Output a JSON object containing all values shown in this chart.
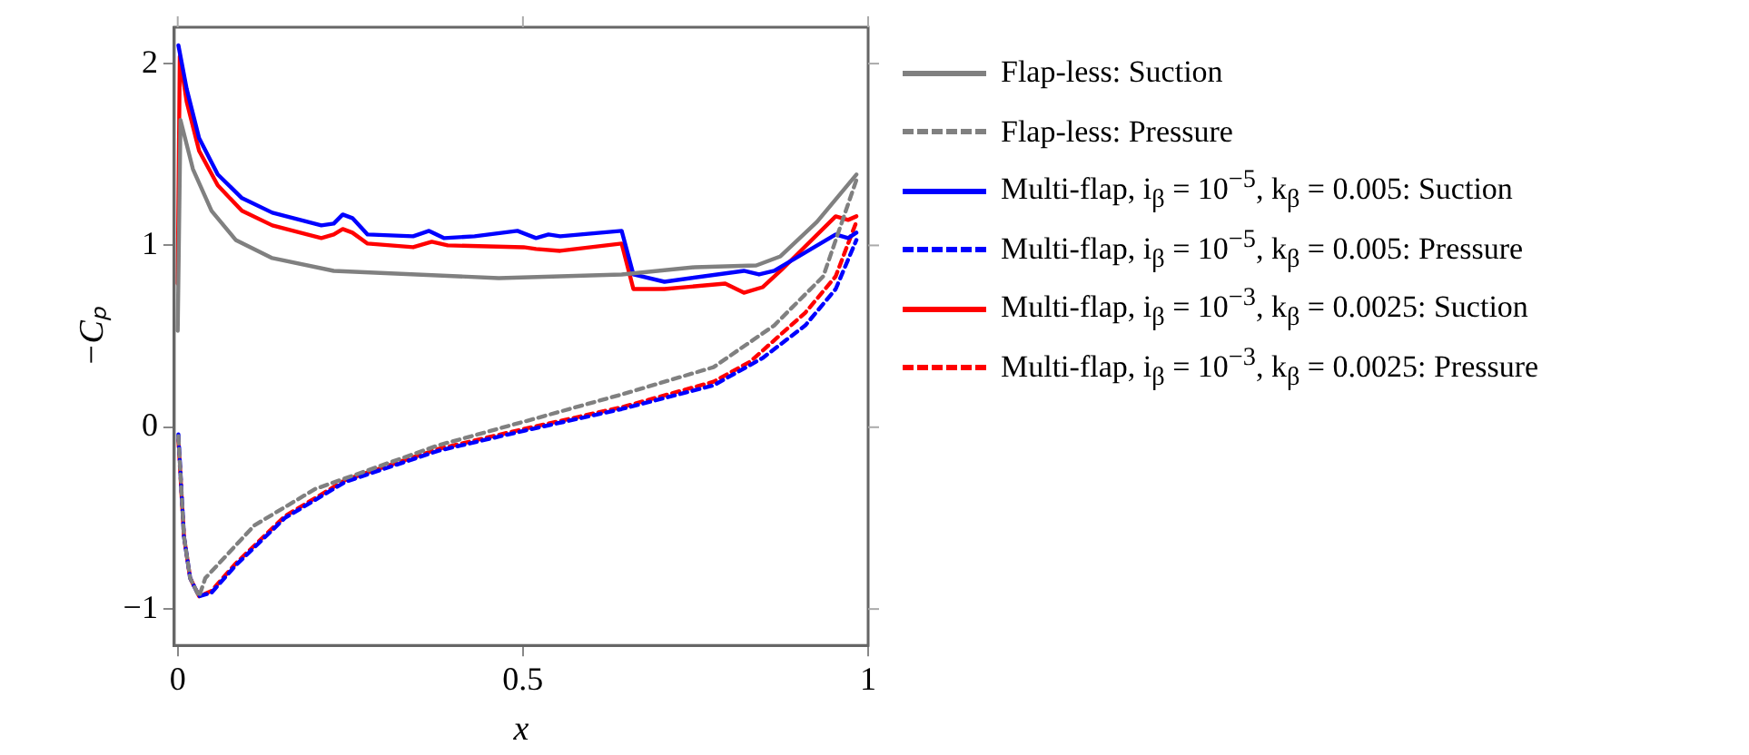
{
  "chart_data": {
    "type": "line",
    "xlabel": "x",
    "ylabel": "−Cₚ",
    "xlim": [
      -0.005,
      1.0
    ],
    "ylim": [
      -1.2,
      2.2
    ],
    "xticks": [
      0,
      0.5,
      1
    ],
    "yticks": [
      -1,
      0,
      1,
      2
    ],
    "grid": false,
    "legend": "right",
    "marker": "none",
    "series": [
      {
        "name": "Flap-less: Suction",
        "color": "#808080",
        "line_style": "solid",
        "x": [
          0,
          0.004,
          0.022,
          0.049,
          0.084,
          0.137,
          0.226,
          0.465,
          0.643,
          0.749,
          0.838,
          0.873,
          0.926,
          0.983
        ],
        "values": [
          0.53,
          1.69,
          1.42,
          1.19,
          1.03,
          0.93,
          0.86,
          0.82,
          0.84,
          0.88,
          0.89,
          0.94,
          1.13,
          1.39
        ]
      },
      {
        "name": "Flap-less: Pressure",
        "color": "#808080",
        "line_style": "dashed",
        "x": [
          0.001,
          0.009,
          0.018,
          0.031,
          0.04,
          0.111,
          0.199,
          0.377,
          0.501,
          0.643,
          0.776,
          0.864,
          0.935,
          0.983
        ],
        "values": [
          -0.05,
          -0.6,
          -0.83,
          -0.93,
          -0.83,
          -0.54,
          -0.34,
          -0.1,
          0.03,
          0.18,
          0.33,
          0.56,
          0.83,
          1.36
        ]
      },
      {
        "name": "Multi-flap, i$_{β}$ = 10$^{−5}$, k$_{β}$ = 0.005: Suction",
        "color": "#0000ff",
        "line_style": "solid",
        "x": [
          0.001,
          0.013,
          0.031,
          0.058,
          0.093,
          0.137,
          0.208,
          0.226,
          0.239,
          0.253,
          0.275,
          0.341,
          0.364,
          0.386,
          0.43,
          0.492,
          0.519,
          0.537,
          0.554,
          0.643,
          0.66,
          0.705,
          0.82,
          0.842,
          0.864,
          0.953,
          0.971,
          0.983
        ],
        "values": [
          2.1,
          1.86,
          1.59,
          1.39,
          1.26,
          1.18,
          1.11,
          1.12,
          1.17,
          1.15,
          1.06,
          1.05,
          1.08,
          1.04,
          1.05,
          1.08,
          1.04,
          1.06,
          1.05,
          1.08,
          0.84,
          0.8,
          0.86,
          0.84,
          0.86,
          1.06,
          1.04,
          1.07
        ]
      },
      {
        "name": "Multi-flap, i$_{β}$ = 10$^{−5}$, k$_{β}$ = 0.005: Pressure",
        "color": "#0000ff",
        "line_style": "dashed",
        "x": [
          0.001,
          0.009,
          0.018,
          0.031,
          0.049,
          0.084,
          0.155,
          0.243,
          0.377,
          0.501,
          0.643,
          0.776,
          0.847,
          0.909,
          0.953,
          0.983
        ],
        "values": [
          -0.04,
          -0.6,
          -0.83,
          -0.93,
          -0.91,
          -0.76,
          -0.5,
          -0.3,
          -0.13,
          -0.02,
          0.1,
          0.23,
          0.38,
          0.56,
          0.76,
          1.03
        ]
      },
      {
        "name": "Multi-flap, i$_{β}$ = 10$^{−3}$, k$_{β}$ = 0.0025: Suction",
        "color": "#ff0000",
        "line_style": "solid",
        "x": [
          0,
          0.003,
          0.013,
          0.031,
          0.058,
          0.093,
          0.137,
          0.208,
          0.226,
          0.239,
          0.253,
          0.275,
          0.341,
          0.368,
          0.391,
          0.501,
          0.519,
          0.554,
          0.643,
          0.66,
          0.705,
          0.793,
          0.82,
          0.847,
          0.873,
          0.953,
          0.971,
          0.983
        ],
        "values": [
          0.79,
          2.04,
          1.79,
          1.52,
          1.33,
          1.19,
          1.11,
          1.04,
          1.06,
          1.09,
          1.07,
          1.01,
          0.99,
          1.02,
          1.0,
          0.99,
          0.98,
          0.97,
          1.01,
          0.76,
          0.76,
          0.79,
          0.74,
          0.77,
          0.86,
          1.16,
          1.14,
          1.16
        ]
      },
      {
        "name": "Multi-flap, i$_{β}$ = 10$^{−3}$, k$_{β}$ = 0.0025: Pressure",
        "color": "#ff0000",
        "line_style": "dashed",
        "x": [
          0.001,
          0.009,
          0.018,
          0.031,
          0.049,
          0.084,
          0.155,
          0.243,
          0.377,
          0.501,
          0.643,
          0.776,
          0.829,
          0.909,
          0.953,
          0.983
        ],
        "values": [
          -0.07,
          -0.6,
          -0.83,
          -0.93,
          -0.9,
          -0.75,
          -0.49,
          -0.29,
          -0.12,
          -0.01,
          0.11,
          0.25,
          0.36,
          0.63,
          0.83,
          1.13
        ]
      }
    ]
  }
}
